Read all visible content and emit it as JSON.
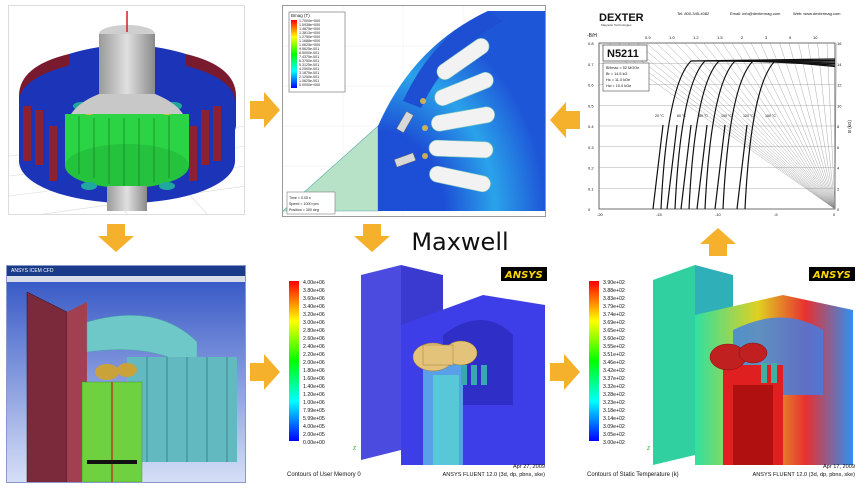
{
  "center_label": "Maxwell",
  "colors": {
    "arrow": "#f5b12c",
    "teal": "#2fa8a0",
    "blue_dark": "#1b34b8",
    "green": "#2ee04a",
    "dark_red": "#7a1a2e"
  },
  "panels": {
    "motor3d": {
      "title": ""
    },
    "flux_map": {
      "legend_title": "Bmag (T)",
      "legend_values": [
        "1.7000e+000",
        "1.5938e+000",
        "1.4875e+000",
        "1.3813e+000",
        "1.2750e+000",
        "1.1688e+000",
        "1.0625e+000",
        "9.5625e-001",
        "8.5000e-001",
        "7.4375e-001",
        "6.3750e-001",
        "5.3125e-001",
        "4.2500e-001",
        "3.1875e-001",
        "2.1250e-001",
        "1.0625e-001",
        "0.0000e+000"
      ],
      "footer_time": "Time = 0.05 s",
      "footer_speed": "Speed = 1000 rpm",
      "footer_pos": "Position = 300 deg"
    },
    "dexter": {
      "brand": "DEXTER",
      "sub": "Magnetic Technologies",
      "contact_tel": "Tel: 800-345-4082",
      "contact_email": "Email: info@dextermag.com",
      "contact_web": "Web: www.dextermag.com",
      "grade": "N5211",
      "specs": [
        "BHmax = 52 MGOe",
        "Br = 14.5 kG",
        "Hc = 11.0 kOe",
        "Hci = 10.0 kOe"
      ],
      "bh_label": "-B/H",
      "temps": [
        "20 °C",
        "60 °C",
        "80 °C",
        "100 °C",
        "120 °C",
        "150 °C"
      ],
      "x_ticks": [
        "-20",
        "-15",
        "-10",
        "-5",
        "0"
      ],
      "y_ticks_left": [
        "0.8",
        "0.7",
        "0.6",
        "0.5",
        "0.4",
        "0.3",
        "0.2",
        "0.1",
        "0"
      ],
      "y_ticks_right": [
        "16",
        "14",
        "12",
        "10",
        "8",
        "6",
        "4",
        "2",
        "0"
      ],
      "y_right_label": "B (kG)",
      "top_ticks": [
        "0.9",
        "1.0",
        "1.2",
        "1.5",
        "2",
        "3",
        "5",
        "10"
      ]
    },
    "mesh": {
      "window_title": "ANSYS ICEM CFD"
    },
    "memory": {
      "logo": "ANSYS",
      "legend_values": [
        "4.00e+06",
        "3.80e+06",
        "3.60e+06",
        "3.40e+06",
        "3.20e+06",
        "3.00e+06",
        "2.80e+06",
        "2.60e+06",
        "2.40e+06",
        "2.20e+06",
        "2.00e+06",
        "1.80e+06",
        "1.60e+06",
        "1.40e+06",
        "1.20e+06",
        "1.00e+06",
        "7.99e+05",
        "5.99e+05",
        "4.00e+05",
        "2.00e+05",
        "0.00e+00"
      ],
      "caption_left": "Contours of User Memory 0",
      "caption_date": "Apr 27, 2009",
      "caption_version": "ANSYS FLUENT 12.0 (3d, dp, pbns, ske)"
    },
    "temperature": {
      "logo": "ANSYS",
      "legend_values": [
        "3.90e+02",
        "3.88e+02",
        "3.83e+02",
        "3.79e+02",
        "3.74e+02",
        "3.69e+02",
        "3.65e+02",
        "3.60e+02",
        "3.55e+02",
        "3.51e+02",
        "3.46e+02",
        "3.42e+02",
        "3.37e+02",
        "3.32e+02",
        "3.28e+02",
        "3.23e+02",
        "3.18e+02",
        "3.14e+02",
        "3.09e+02",
        "3.05e+02",
        "3.00e+02"
      ],
      "caption_left": "Contours of Static Temperature (k)",
      "caption_date": "Apr 17, 2009",
      "caption_version": "ANSYS FLUENT 12.0 (3d, dp, pbns, ske)"
    }
  }
}
